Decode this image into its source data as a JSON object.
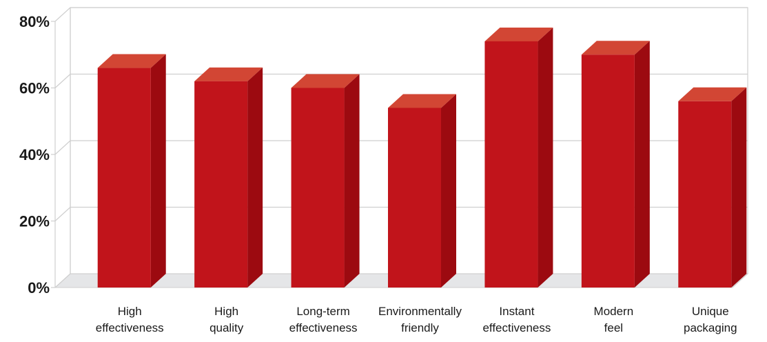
{
  "chart_data": {
    "type": "bar",
    "style": "3d",
    "categories": [
      [
        "High",
        "effectiveness"
      ],
      [
        "High",
        "quality"
      ],
      [
        "Long-term",
        "effectiveness"
      ],
      [
        "Environmentally",
        "friendly"
      ],
      [
        "Instant",
        "effectiveness"
      ],
      [
        "Modern",
        "feel"
      ],
      [
        "Unique",
        "packaging"
      ]
    ],
    "values": [
      66,
      62,
      60,
      54,
      74,
      70,
      56
    ],
    "value_unit": "%",
    "ylim": [
      0,
      80
    ],
    "yticks": [
      "0%",
      "20%",
      "40%",
      "60%",
      "80%"
    ],
    "grid": true,
    "colors": {
      "bar_front": "#c1141b",
      "bar_side": "#9c0a10",
      "bar_top": "#d24634",
      "grid": "#cfcfcf",
      "floor": "#e5e6e8"
    }
  }
}
